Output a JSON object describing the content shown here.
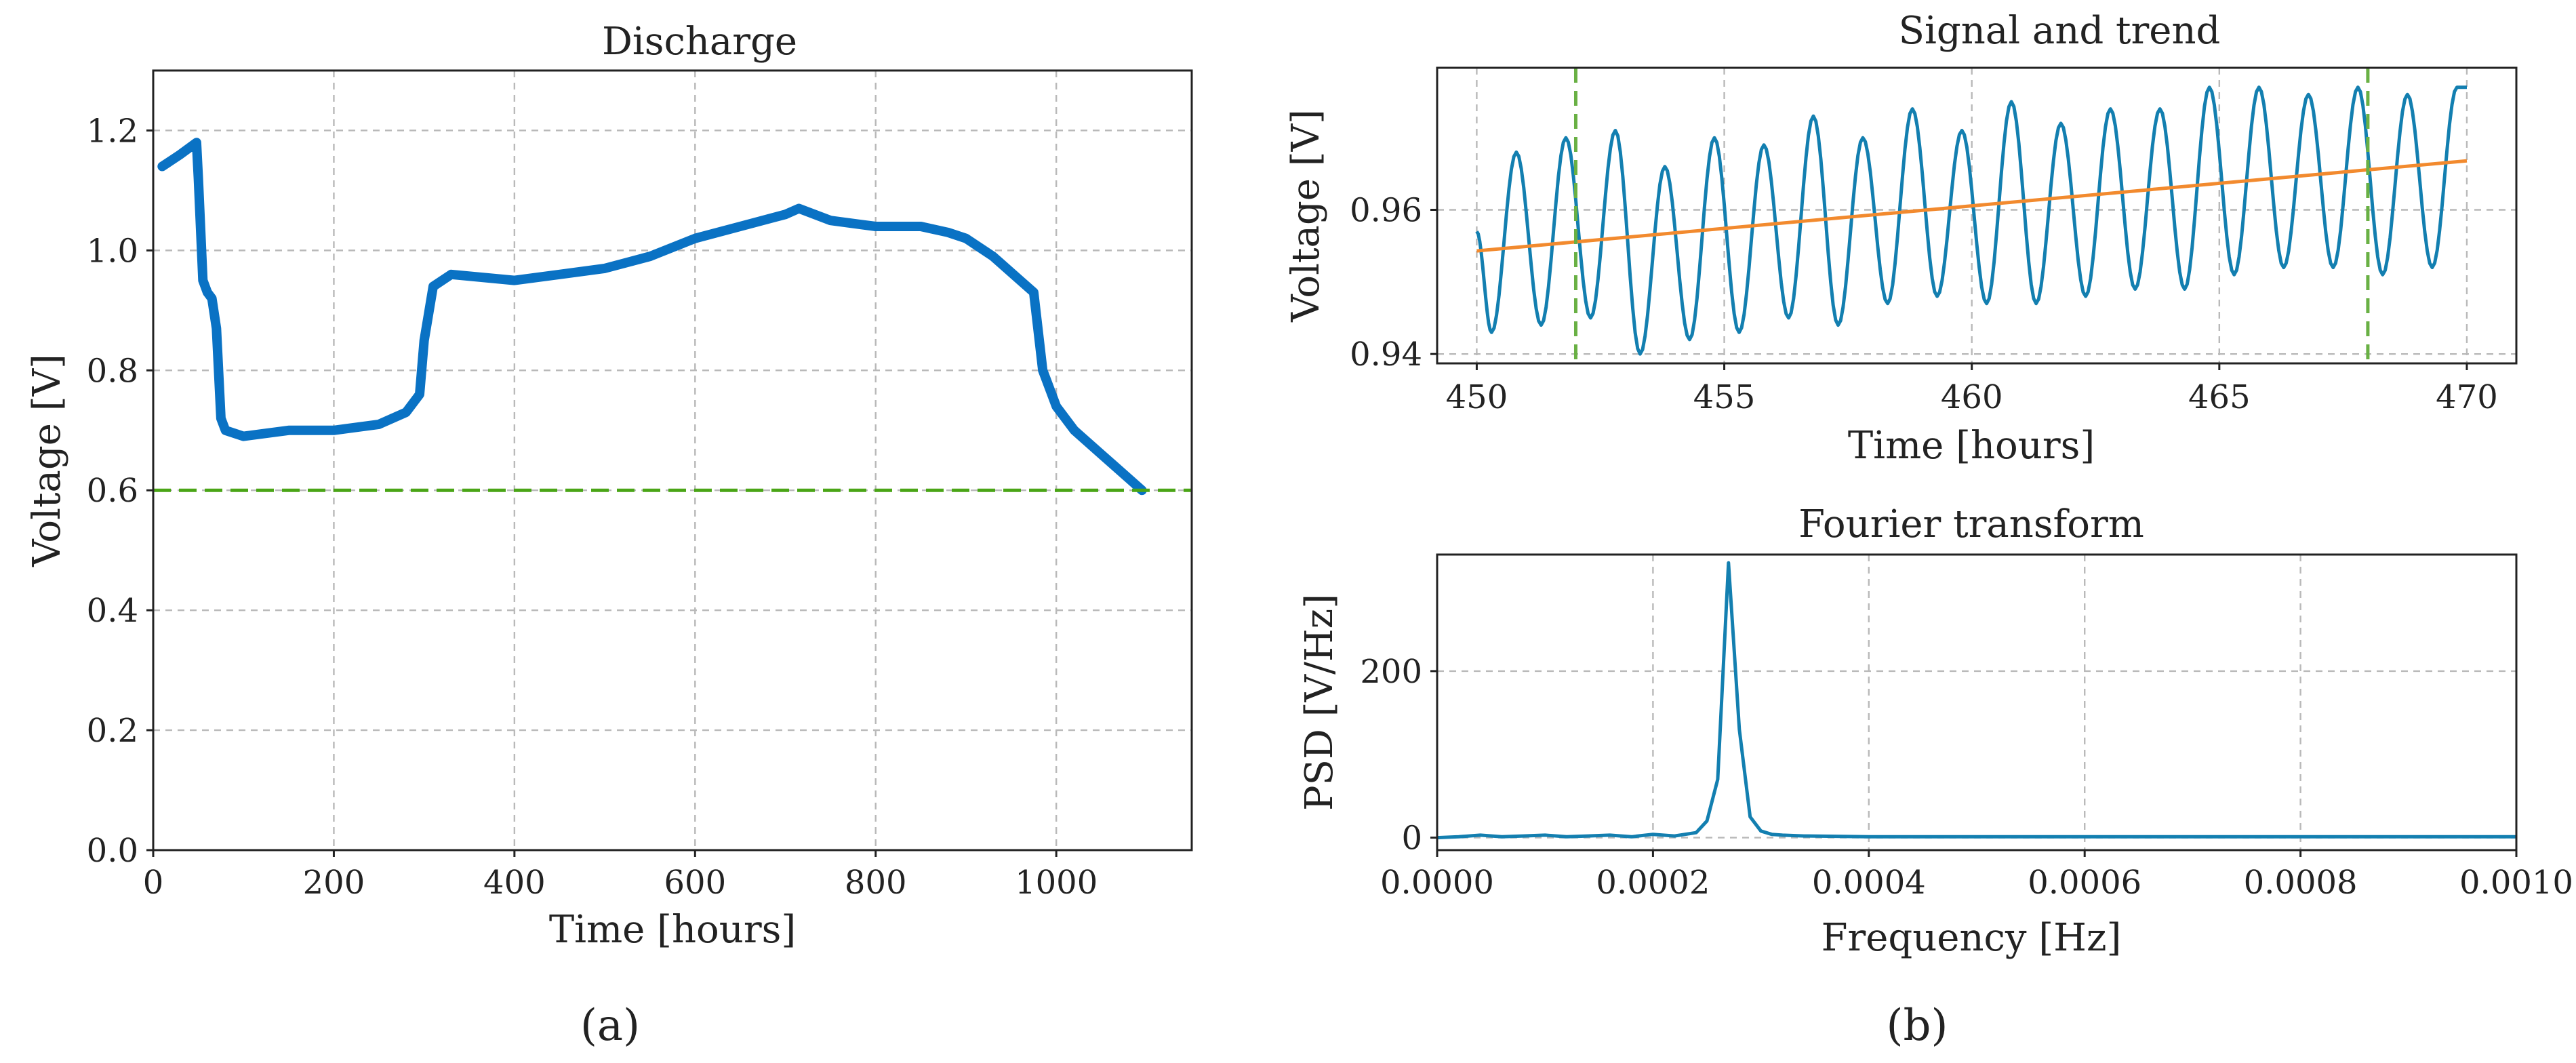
{
  "colors": {
    "discharge": "#0a72c4",
    "threshold": "#4aa516",
    "signal": "#137fb0",
    "trend": "#f28a2e",
    "window": "#69b044",
    "fft": "#137fb0"
  },
  "panel_labels": {
    "a": "(a)",
    "b": "(b)"
  },
  "chart_data": [
    {
      "id": "discharge",
      "type": "line",
      "title": "Discharge",
      "xlabel": "Time [hours]",
      "ylabel": "Voltage [V]",
      "xlim": [
        0,
        1150
      ],
      "ylim": [
        0.0,
        1.3
      ],
      "grid": true,
      "xticks": [
        0,
        200,
        400,
        600,
        800,
        1000
      ],
      "xtick_labels": [
        "0",
        "200",
        "400",
        "600",
        "800",
        "1000"
      ],
      "yticks": [
        0.0,
        0.2,
        0.4,
        0.6,
        0.8,
        1.0,
        1.2
      ],
      "ytick_labels": [
        "0.0",
        "0.2",
        "0.4",
        "0.6",
        "0.8",
        "1.0",
        "1.2"
      ],
      "series": [
        {
          "name": "Voltage",
          "x": [
            10,
            30,
            48,
            50,
            55,
            60,
            65,
            70,
            75,
            80,
            100,
            150,
            200,
            250,
            280,
            295,
            300,
            310,
            330,
            400,
            450,
            500,
            550,
            600,
            650,
            700,
            715,
            750,
            800,
            850,
            880,
            900,
            930,
            960,
            975,
            985,
            990,
            1000,
            1020,
            1050,
            1080,
            1095
          ],
          "y": [
            1.14,
            1.16,
            1.18,
            1.12,
            0.95,
            0.93,
            0.92,
            0.87,
            0.72,
            0.7,
            0.69,
            0.7,
            0.7,
            0.71,
            0.73,
            0.76,
            0.85,
            0.94,
            0.96,
            0.95,
            0.96,
            0.97,
            0.99,
            1.02,
            1.04,
            1.06,
            1.07,
            1.05,
            1.04,
            1.04,
            1.03,
            1.02,
            0.99,
            0.95,
            0.93,
            0.8,
            0.78,
            0.74,
            0.7,
            0.66,
            0.62,
            0.6
          ]
        }
      ],
      "reference_lines": [
        {
          "axis": "y",
          "value": 0.6,
          "style": "dashed"
        }
      ]
    },
    {
      "id": "signal-trend",
      "type": "line",
      "title": "Signal and trend",
      "xlabel": "Time [hours]",
      "ylabel": "Voltage [V]",
      "xlim": [
        449.2,
        471.0
      ],
      "ylim": [
        0.9387,
        0.9797
      ],
      "grid": true,
      "xticks": [
        450,
        455,
        460,
        465,
        470
      ],
      "xtick_labels": [
        "450",
        "455",
        "460",
        "465",
        "470"
      ],
      "yticks": [
        0.94,
        0.96
      ],
      "ytick_labels": [
        "0.94",
        "0.96"
      ],
      "series": [
        {
          "name": "Signal",
          "x_start": 450,
          "x_end": 470,
          "period_hours": 1.0,
          "peak_times": [
            450.8,
            451.8,
            452.8,
            453.8,
            454.8,
            455.8,
            456.8,
            457.8,
            458.8,
            459.8,
            460.8,
            461.8,
            462.8,
            463.8,
            464.8,
            465.8,
            466.8,
            467.8,
            468.8,
            469.8
          ],
          "peaks": [
            0.968,
            0.97,
            0.971,
            0.966,
            0.97,
            0.969,
            0.973,
            0.97,
            0.974,
            0.971,
            0.975,
            0.972,
            0.974,
            0.974,
            0.977,
            0.977,
            0.976,
            0.977,
            0.976,
            0.977
          ],
          "troughs": [
            0.943,
            0.944,
            0.945,
            0.94,
            0.942,
            0.943,
            0.945,
            0.944,
            0.947,
            0.948,
            0.947,
            0.947,
            0.948,
            0.949,
            0.949,
            0.951,
            0.952,
            0.952,
            0.951,
            0.952
          ],
          "start_value": 0.957,
          "end_value": 0.977
        },
        {
          "name": "Trend",
          "x": [
            450,
            470
          ],
          "y": [
            0.9543,
            0.9668
          ]
        }
      ],
      "vertical_markers": [
        452,
        468
      ]
    },
    {
      "id": "fourier",
      "type": "line",
      "title": "Fourier transform",
      "xlabel": "Frequency [Hz]",
      "ylabel": "PSD [V/Hz]",
      "xlim": [
        0.0,
        0.001
      ],
      "ylim": [
        -15,
        340
      ],
      "grid": true,
      "xticks": [
        0.0,
        0.0002,
        0.0004,
        0.0006,
        0.0008,
        0.001
      ],
      "xtick_labels": [
        "0.0000",
        "0.0002",
        "0.0004",
        "0.0006",
        "0.0008",
        "0.0010"
      ],
      "yticks": [
        0,
        200
      ],
      "ytick_labels": [
        "0",
        "200"
      ],
      "series": [
        {
          "name": "PSD",
          "x": [
            0.0,
            2e-05,
            4e-05,
            6e-05,
            8e-05,
            0.0001,
            0.00012,
            0.00014,
            0.00016,
            0.00018,
            0.0002,
            0.00022,
            0.00024,
            0.00025,
            0.00026,
            0.00027,
            0.00028,
            0.00029,
            0.0003,
            0.00031,
            0.00032,
            0.00034,
            0.0004,
            0.0005,
            0.0006,
            0.0007,
            0.0008,
            0.0009,
            0.001
          ],
          "y": [
            0,
            1,
            3,
            1,
            2,
            3,
            1,
            2,
            3,
            1,
            4,
            2,
            6,
            20,
            70,
            330,
            130,
            25,
            8,
            4,
            3,
            2,
            1,
            1,
            1,
            1,
            1,
            1,
            1
          ]
        }
      ]
    }
  ]
}
